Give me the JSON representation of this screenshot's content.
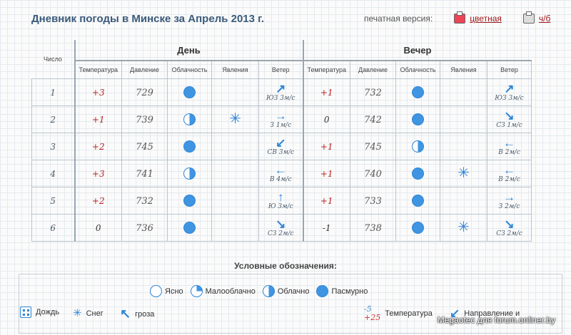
{
  "title": "Дневник погоды в Минске за Апрель 2013 г.",
  "print": {
    "label": "печатная версия:",
    "color_link": "цветная",
    "bw_link": "ч/б"
  },
  "table": {
    "groups": {
      "day": "День",
      "evening": "Вечер"
    },
    "headers": {
      "num": "Число",
      "temp": "Температура",
      "pressure": "Давление",
      "cloud": "Облачность",
      "phen": "Явления",
      "wind": "Ветер"
    },
    "rows": [
      {
        "day": "1",
        "d": {
          "temp": "+3",
          "pressure": "729",
          "cloud": "full",
          "phen": "",
          "wind_arrow": "↗",
          "wind_text": "ЮЗ 3м/с"
        },
        "e": {
          "temp": "+1",
          "pressure": "732",
          "cloud": "full",
          "phen": "",
          "wind_arrow": "↗",
          "wind_text": "ЮЗ 3м/с"
        }
      },
      {
        "day": "2",
        "d": {
          "temp": "+1",
          "pressure": "739",
          "cloud": "half",
          "phen": "✳",
          "wind_arrow": "→",
          "wind_text": "З 1м/с"
        },
        "e": {
          "temp": "0",
          "pressure": "742",
          "cloud": "full",
          "phen": "",
          "wind_arrow": "↘",
          "wind_text": "СЗ 1м/с"
        }
      },
      {
        "day": "3",
        "d": {
          "temp": "+2",
          "pressure": "745",
          "cloud": "full",
          "phen": "",
          "wind_arrow": "↙",
          "wind_text": "СВ 3м/с"
        },
        "e": {
          "temp": "+1",
          "pressure": "745",
          "cloud": "half",
          "phen": "",
          "wind_arrow": "←",
          "wind_text": "В 2м/с"
        }
      },
      {
        "day": "4",
        "d": {
          "temp": "+3",
          "pressure": "741",
          "cloud": "half",
          "phen": "",
          "wind_arrow": "←",
          "wind_text": "В 4м/с"
        },
        "e": {
          "temp": "+1",
          "pressure": "740",
          "cloud": "full",
          "phen": "✳",
          "wind_arrow": "←",
          "wind_text": "В 2м/с"
        }
      },
      {
        "day": "5",
        "d": {
          "temp": "+2",
          "pressure": "732",
          "cloud": "full",
          "phen": "",
          "wind_arrow": "↑",
          "wind_text": "Ю 3м/с"
        },
        "e": {
          "temp": "+1",
          "pressure": "733",
          "cloud": "full",
          "phen": "",
          "wind_arrow": "→",
          "wind_text": "З 2м/с"
        }
      },
      {
        "day": "6",
        "d": {
          "temp": "0",
          "pressure": "736",
          "cloud": "full",
          "phen": "",
          "wind_arrow": "↘",
          "wind_text": "СЗ 2м/с"
        },
        "e": {
          "temp": "-1",
          "pressure": "738",
          "cloud": "full",
          "phen": "✳",
          "wind_arrow": "↘",
          "wind_text": "СЗ 2м/с"
        }
      }
    ]
  },
  "legend": {
    "title": "Условные обозначения:",
    "clear": "Ясно",
    "partly": "Малооблачно",
    "cloudy": "Облачно",
    "overcast": "Пасмурно",
    "rain": "Дождь",
    "snow": "Снег",
    "storm": "гроза",
    "temp_label": "Температура",
    "temp_low": "-5",
    "temp_high": "+25",
    "wind_label": "Направление и"
  },
  "watermark": "Megaotec для forum.onliner.by",
  "colors": {
    "accent": "#3f95e2",
    "title": "#3a5a7a",
    "link": "#a0191a",
    "warm": "#bb2222"
  }
}
